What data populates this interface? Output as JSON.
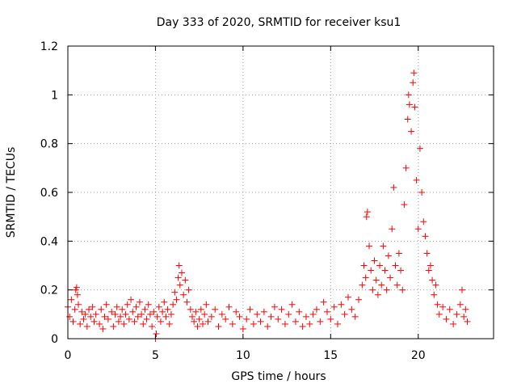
{
  "chart_data": {
    "type": "scatter",
    "title": "Day 333 of 2020, SRMTID for receiver ksu1",
    "xlabel": "GPS time / hours",
    "ylabel": "SRMTID / TECUs",
    "xlim": [
      0,
      24.3
    ],
    "ylim": [
      0,
      1.2
    ],
    "xticks": [
      0,
      5,
      10,
      15,
      20
    ],
    "xtick_labels": [
      "0",
      "5",
      "10",
      "15",
      "20"
    ],
    "yticks": [
      0,
      0.2,
      0.4,
      0.6,
      0.8,
      1.0,
      1.2
    ],
    "ytick_labels": [
      "0",
      "0.2",
      "0.4",
      "0.6",
      "0.8",
      "1",
      "1.2"
    ],
    "grid": true,
    "marker": "+",
    "series": [
      {
        "name": "SRMTID",
        "color": "#ff0000",
        "points": [
          [
            0.0,
            0.13
          ],
          [
            0.1,
            0.09
          ],
          [
            0.2,
            0.16
          ],
          [
            0.3,
            0.07
          ],
          [
            0.4,
            0.12
          ],
          [
            0.45,
            0.2
          ],
          [
            0.5,
            0.21
          ],
          [
            0.55,
            0.18
          ],
          [
            0.6,
            0.14
          ],
          [
            0.7,
            0.06
          ],
          [
            0.8,
            0.11
          ],
          [
            0.9,
            0.08
          ],
          [
            1.0,
            0.1
          ],
          [
            1.1,
            0.05
          ],
          [
            1.2,
            0.12
          ],
          [
            1.3,
            0.09
          ],
          [
            1.4,
            0.13
          ],
          [
            1.5,
            0.07
          ],
          [
            1.6,
            0.1
          ],
          [
            1.8,
            0.06
          ],
          [
            1.9,
            0.12
          ],
          [
            2.0,
            0.04
          ],
          [
            2.1,
            0.09
          ],
          [
            2.2,
            0.14
          ],
          [
            2.3,
            0.08
          ],
          [
            2.5,
            0.11
          ],
          [
            2.6,
            0.05
          ],
          [
            2.7,
            0.1
          ],
          [
            2.8,
            0.13
          ],
          [
            2.9,
            0.07
          ],
          [
            3.0,
            0.09
          ],
          [
            3.1,
            0.12
          ],
          [
            3.2,
            0.06
          ],
          [
            3.3,
            0.1
          ],
          [
            3.4,
            0.14
          ],
          [
            3.5,
            0.08
          ],
          [
            3.6,
            0.16
          ],
          [
            3.7,
            0.11
          ],
          [
            3.8,
            0.07
          ],
          [
            3.9,
            0.13
          ],
          [
            4.0,
            0.09
          ],
          [
            4.1,
            0.15
          ],
          [
            4.2,
            0.1
          ],
          [
            4.3,
            0.06
          ],
          [
            4.4,
            0.12
          ],
          [
            4.5,
            0.08
          ],
          [
            4.6,
            0.14
          ],
          [
            4.7,
            0.1
          ],
          [
            4.8,
            0.05
          ],
          [
            4.9,
            0.11
          ],
          [
            5.0,
            0.0
          ],
          [
            5.05,
            0.02
          ],
          [
            5.1,
            0.09
          ],
          [
            5.2,
            0.13
          ],
          [
            5.3,
            0.07
          ],
          [
            5.4,
            0.11
          ],
          [
            5.5,
            0.15
          ],
          [
            5.6,
            0.09
          ],
          [
            5.7,
            0.12
          ],
          [
            5.8,
            0.06
          ],
          [
            5.9,
            0.1
          ],
          [
            6.0,
            0.14
          ],
          [
            6.1,
            0.19
          ],
          [
            6.2,
            0.16
          ],
          [
            6.3,
            0.25
          ],
          [
            6.35,
            0.3
          ],
          [
            6.4,
            0.22
          ],
          [
            6.5,
            0.27
          ],
          [
            6.6,
            0.18
          ],
          [
            6.7,
            0.24
          ],
          [
            6.8,
            0.15
          ],
          [
            6.9,
            0.2
          ],
          [
            7.0,
            0.12
          ],
          [
            7.1,
            0.09
          ],
          [
            7.2,
            0.07
          ],
          [
            7.3,
            0.11
          ],
          [
            7.4,
            0.05
          ],
          [
            7.5,
            0.08
          ],
          [
            7.6,
            0.12
          ],
          [
            7.7,
            0.06
          ],
          [
            7.8,
            0.1
          ],
          [
            7.9,
            0.14
          ],
          [
            8.0,
            0.07
          ],
          [
            8.2,
            0.09
          ],
          [
            8.4,
            0.12
          ],
          [
            8.6,
            0.05
          ],
          [
            8.8,
            0.1
          ],
          [
            9.0,
            0.08
          ],
          [
            9.2,
            0.13
          ],
          [
            9.4,
            0.06
          ],
          [
            9.6,
            0.11
          ],
          [
            9.8,
            0.09
          ],
          [
            10.0,
            0.04
          ],
          [
            10.2,
            0.08
          ],
          [
            10.4,
            0.12
          ],
          [
            10.6,
            0.06
          ],
          [
            10.8,
            0.1
          ],
          [
            11.0,
            0.07
          ],
          [
            11.2,
            0.11
          ],
          [
            11.4,
            0.05
          ],
          [
            11.6,
            0.09
          ],
          [
            11.8,
            0.13
          ],
          [
            12.0,
            0.08
          ],
          [
            12.2,
            0.12
          ],
          [
            12.4,
            0.06
          ],
          [
            12.6,
            0.1
          ],
          [
            12.8,
            0.14
          ],
          [
            13.0,
            0.07
          ],
          [
            13.2,
            0.11
          ],
          [
            13.4,
            0.05
          ],
          [
            13.6,
            0.09
          ],
          [
            13.8,
            0.06
          ],
          [
            14.0,
            0.1
          ],
          [
            14.2,
            0.12
          ],
          [
            14.4,
            0.07
          ],
          [
            14.6,
            0.15
          ],
          [
            14.8,
            0.11
          ],
          [
            15.0,
            0.08
          ],
          [
            15.2,
            0.13
          ],
          [
            15.4,
            0.06
          ],
          [
            15.6,
            0.14
          ],
          [
            15.8,
            0.1
          ],
          [
            16.0,
            0.17
          ],
          [
            16.2,
            0.12
          ],
          [
            16.4,
            0.09
          ],
          [
            16.6,
            0.16
          ],
          [
            16.8,
            0.22
          ],
          [
            16.9,
            0.3
          ],
          [
            17.0,
            0.25
          ],
          [
            17.05,
            0.5
          ],
          [
            17.1,
            0.52
          ],
          [
            17.2,
            0.38
          ],
          [
            17.3,
            0.28
          ],
          [
            17.4,
            0.2
          ],
          [
            17.5,
            0.32
          ],
          [
            17.6,
            0.24
          ],
          [
            17.7,
            0.18
          ],
          [
            17.8,
            0.3
          ],
          [
            17.9,
            0.22
          ],
          [
            18.0,
            0.38
          ],
          [
            18.1,
            0.28
          ],
          [
            18.2,
            0.2
          ],
          [
            18.3,
            0.34
          ],
          [
            18.4,
            0.25
          ],
          [
            18.5,
            0.45
          ],
          [
            18.6,
            0.62
          ],
          [
            18.7,
            0.3
          ],
          [
            18.8,
            0.22
          ],
          [
            18.9,
            0.35
          ],
          [
            19.0,
            0.28
          ],
          [
            19.1,
            0.2
          ],
          [
            19.2,
            0.55
          ],
          [
            19.3,
            0.7
          ],
          [
            19.4,
            0.9
          ],
          [
            19.45,
            1.0
          ],
          [
            19.5,
            0.96
          ],
          [
            19.6,
            0.85
          ],
          [
            19.7,
            1.05
          ],
          [
            19.75,
            1.09
          ],
          [
            19.8,
            0.95
          ],
          [
            19.9,
            0.65
          ],
          [
            20.0,
            0.45
          ],
          [
            20.1,
            0.78
          ],
          [
            20.2,
            0.6
          ],
          [
            20.3,
            0.48
          ],
          [
            20.4,
            0.42
          ],
          [
            20.5,
            0.35
          ],
          [
            20.6,
            0.28
          ],
          [
            20.7,
            0.3
          ],
          [
            20.8,
            0.24
          ],
          [
            20.9,
            0.18
          ],
          [
            21.0,
            0.22
          ],
          [
            21.1,
            0.14
          ],
          [
            21.2,
            0.1
          ],
          [
            21.4,
            0.13
          ],
          [
            21.6,
            0.08
          ],
          [
            21.8,
            0.12
          ],
          [
            22.0,
            0.06
          ],
          [
            22.2,
            0.1
          ],
          [
            22.4,
            0.14
          ],
          [
            22.5,
            0.2
          ],
          [
            22.6,
            0.09
          ],
          [
            22.7,
            0.12
          ],
          [
            22.8,
            0.07
          ]
        ]
      }
    ]
  }
}
